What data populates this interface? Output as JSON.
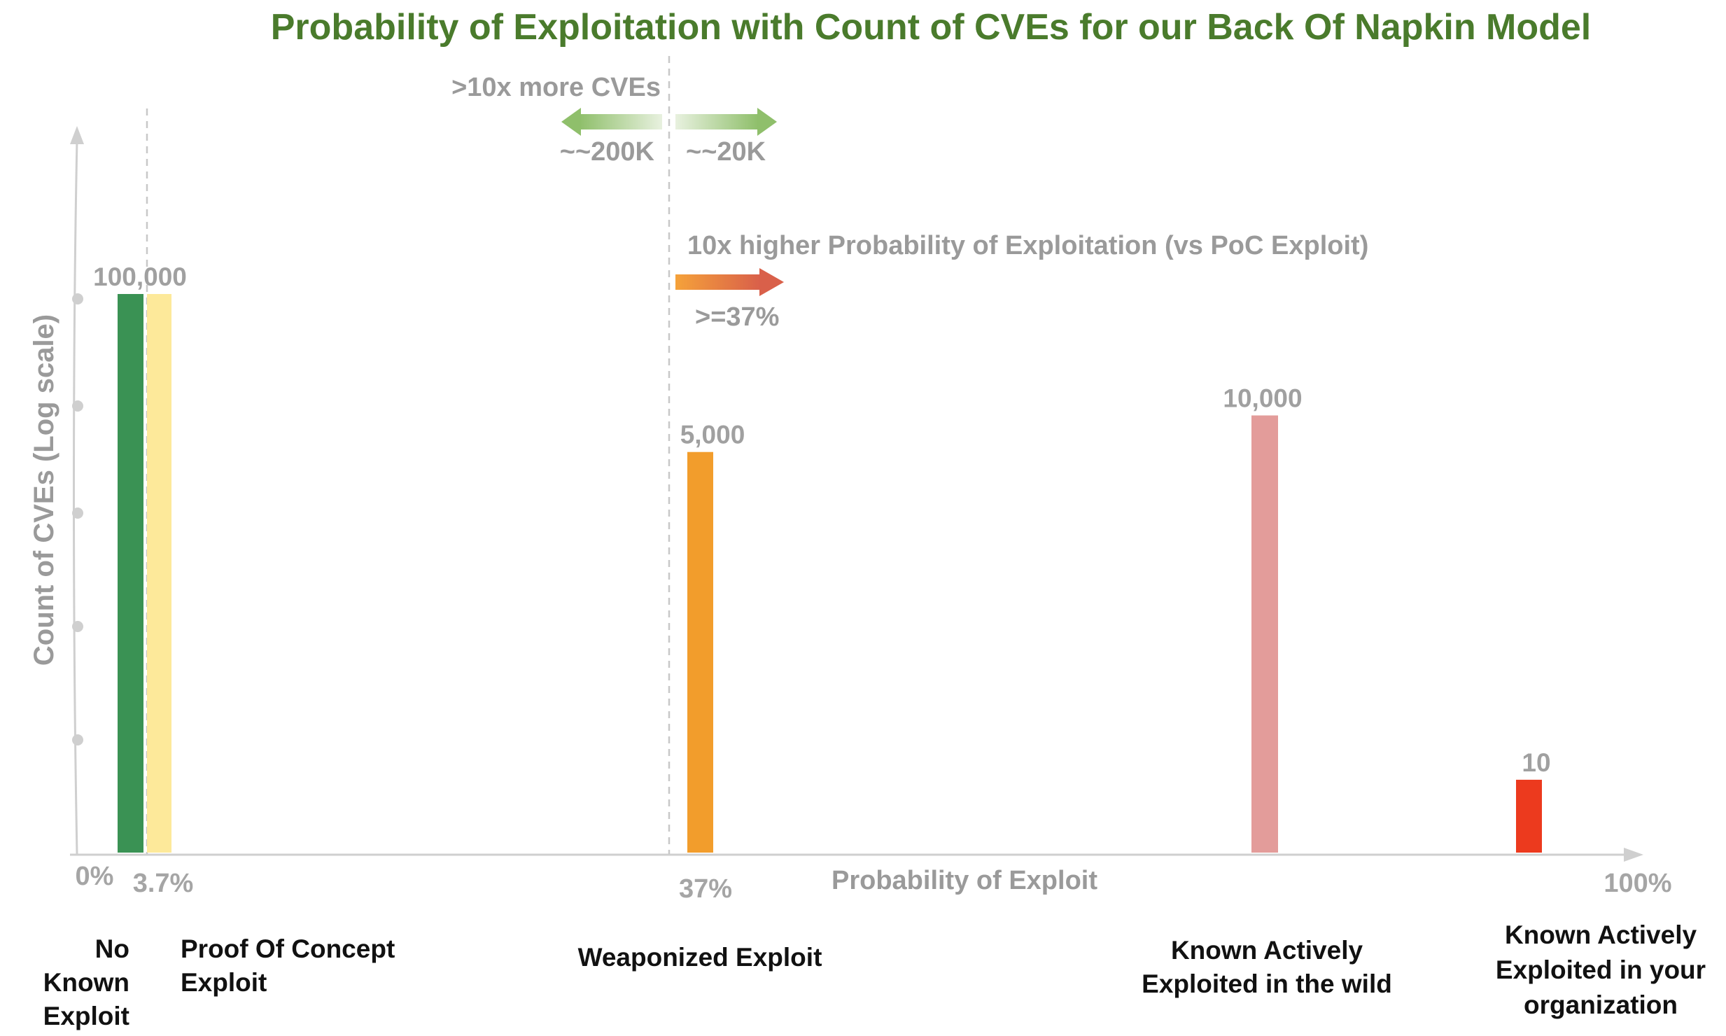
{
  "chart_data": {
    "type": "bar",
    "title": "Probability of Exploitation with Count of CVEs for our Back Of Napkin Model",
    "xlabel": "Probability of Exploit",
    "ylabel": "Count of CVEs (Log scale)",
    "y_scale": "log",
    "x_ticks": [
      "0%",
      "3.7%",
      "37%",
      "100%"
    ],
    "series": [
      {
        "category": [
          "No",
          "Known",
          "Exploit"
        ],
        "value": 100000,
        "value_label": "",
        "color": "#3a9254"
      },
      {
        "category": [
          "Proof Of Concept",
          "Exploit"
        ],
        "value": 100000,
        "value_label": "100,000",
        "color": "#fde99a"
      },
      {
        "category": [
          "Weaponized Exploit"
        ],
        "value": 5000,
        "value_label": "5,000",
        "color": "#f29d2c"
      },
      {
        "category": [
          "Known Actively",
          "Exploited in the wild"
        ],
        "value": 10000,
        "value_label": "10,000",
        "color": "#e39c9a"
      },
      {
        "category": [
          "Known Actively",
          "Exploited in your",
          "organization"
        ],
        "value": 10,
        "value_label": "10",
        "color": "#ec3a1e"
      }
    ],
    "annotations": {
      "cve_compare": ">10x more CVEs",
      "left_count": "~~200K",
      "right_count": "~~20K",
      "prob_compare": "10x higher Probability of Exploitation (vs PoC Exploit)",
      "prob_threshold": ">=37%"
    }
  }
}
